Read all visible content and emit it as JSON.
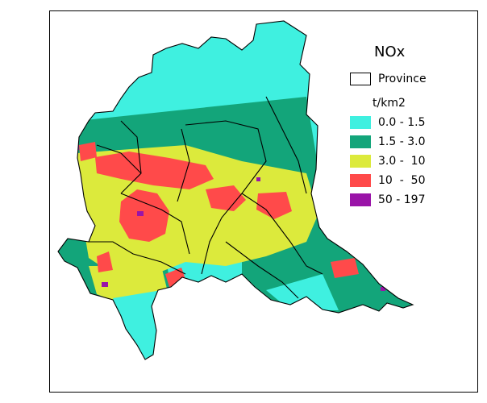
{
  "legend": {
    "title": "NOx",
    "province_label": "Province",
    "unit": "t/km2",
    "classes": [
      {
        "label": "0.0 - 1.5",
        "color": "#3ff0e0"
      },
      {
        "label": "1.5 - 3.0",
        "color": "#13a57a"
      },
      {
        "label": "3.0 -  10",
        "color": "#dcea3c"
      },
      {
        "label": "10  -  50",
        "color": "#ff4a4a"
      },
      {
        "label": "50 - 197",
        "color": "#9a14a8"
      }
    ]
  },
  "colors": {
    "low": "#3ff0e0",
    "mid_low": "#13a57a",
    "mid": "#dcea3c",
    "high": "#ff4a4a",
    "very_high": "#9a14a8",
    "border": "#000000"
  }
}
